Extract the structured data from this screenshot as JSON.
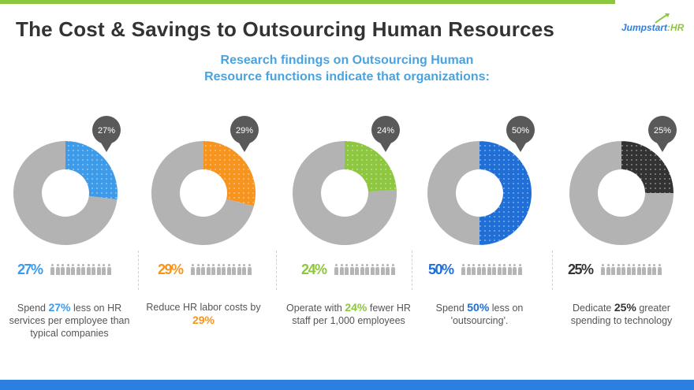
{
  "header": {
    "title": "The Cost & Savings to Outsourcing Human Resources",
    "subtitle_line1": "Research findings on Outsourcing Human",
    "subtitle_line2": "Resource functions indicate that organizations:"
  },
  "logo": {
    "text_main": "Jumpstart",
    "text_accent": ":HR"
  },
  "colors": {
    "remainder": "#b3b3b3",
    "top_bar": "#8dc63f",
    "bottom_bar": "#2b7fe0",
    "callout": "#595959"
  },
  "chart_data": {
    "type": "pie",
    "series": [
      {
        "value": 27,
        "label": "27%",
        "color": "#3d9be9",
        "desc_pre": "Spend ",
        "desc_value": "27%",
        "desc_post": " less on HR services per employee than typical companies"
      },
      {
        "value": 29,
        "label": "29%",
        "color": "#f7941d",
        "desc_pre": "Reduce HR labor costs by ",
        "desc_value": "29%",
        "desc_post": ""
      },
      {
        "value": 24,
        "label": "24%",
        "color": "#8dc63f",
        "desc_pre": "Operate with ",
        "desc_value": "24%",
        "desc_post": " fewer HR staff per 1,000 employees"
      },
      {
        "value": 50,
        "label": "50%",
        "color": "#1f6fd6",
        "desc_pre": "Spend ",
        "desc_value": "50%",
        "desc_post": " less on 'outsourcing'."
      },
      {
        "value": 25,
        "label": "25%",
        "color": "#333333",
        "desc_pre": "Dedicate ",
        "desc_value": "25%",
        "desc_post": " greater spending to technology"
      }
    ]
  }
}
